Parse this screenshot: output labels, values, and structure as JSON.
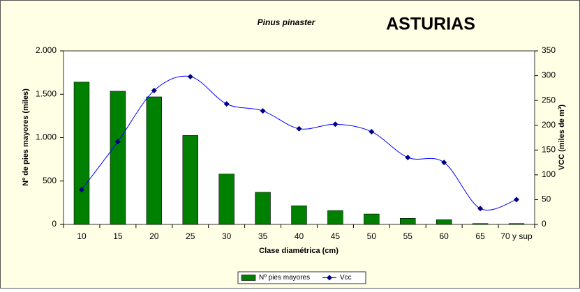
{
  "chart_data": {
    "type": "bar_line",
    "subtitle": "Pinus pinaster",
    "title": "ASTURIAS",
    "xlabel": "Clase diamétrica (cm)",
    "ylabel": "Nº de pies mayores (miles)",
    "y2label": "VCC (miles de m³)",
    "categories": [
      "10",
      "15",
      "20",
      "25",
      "30",
      "35",
      "40",
      "45",
      "50",
      "55",
      "60",
      "65",
      "70 y sup"
    ],
    "series": [
      {
        "name": "Nº pies mayores",
        "type": "bar",
        "color": "#008000",
        "values": [
          1640,
          1535,
          1470,
          1025,
          580,
          370,
          215,
          160,
          120,
          70,
          55,
          10,
          10
        ]
      },
      {
        "name": "Vcc",
        "type": "line",
        "axis": "y2",
        "color": "#0000ff",
        "values": [
          70,
          167,
          270,
          298,
          243,
          229,
          193,
          202,
          187,
          135,
          125,
          32,
          50
        ]
      }
    ],
    "ylim": [
      0,
      2000
    ],
    "yticks": [
      0,
      500,
      {
        "value": 1000,
        "label": "1.000"
      },
      {
        "value": 1500,
        "label": "1.500"
      },
      {
        "value": 2000,
        "label": "2.000"
      }
    ],
    "y2lim": [
      0,
      350
    ],
    "y2ticks": [
      0,
      50,
      100,
      150,
      200,
      250,
      300,
      350
    ],
    "legend": "bottom"
  }
}
